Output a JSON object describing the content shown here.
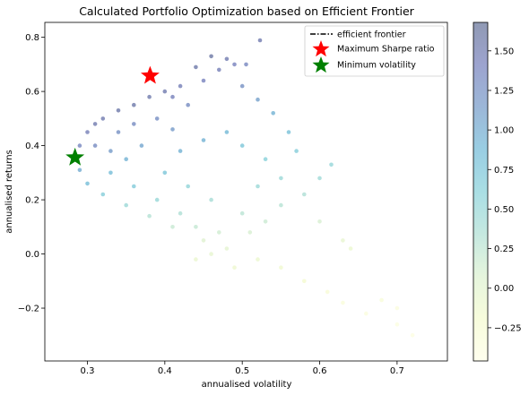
{
  "chart_data": {
    "type": "scatter",
    "title": "Calculated Portfolio Optimization based on Efficient Frontier",
    "xlabel": "annualised volatility",
    "ylabel": "annualised returns",
    "xlim": [
      0.245,
      0.765
    ],
    "ylim": [
      -0.395,
      0.855
    ],
    "xticks": [
      0.3,
      0.4,
      0.5,
      0.6,
      0.7
    ],
    "xtick_labels": [
      "0.3",
      "0.4",
      "0.5",
      "0.6",
      "0.7"
    ],
    "yticks": [
      -0.2,
      0.0,
      0.2,
      0.4,
      0.6,
      0.8
    ],
    "ytick_labels": [
      "−0.2",
      "0.0",
      "0.2",
      "0.4",
      "0.6",
      "0.8"
    ],
    "grid": false,
    "colorbar": {
      "colormap": "YlGnBu",
      "range": [
        -0.46,
        1.68
      ],
      "ticks": [
        -0.25,
        0.0,
        0.25,
        0.5,
        0.75,
        1.0,
        1.25,
        1.5
      ],
      "tick_labels": [
        "−0.25",
        "0.00",
        "0.25",
        "0.50",
        "0.75",
        "1.00",
        "1.25",
        "1.50"
      ]
    },
    "scatter_cloud": {
      "description_of_shape": "random portfolios colored by Sharpe ratio",
      "points": [
        [
          0.282,
          0.358,
          1.2
        ],
        [
          0.29,
          0.4,
          1.35
        ],
        [
          0.29,
          0.31,
          1.0
        ],
        [
          0.3,
          0.45,
          1.45
        ],
        [
          0.31,
          0.48,
          1.5
        ],
        [
          0.32,
          0.5,
          1.5
        ],
        [
          0.34,
          0.53,
          1.55
        ],
        [
          0.36,
          0.55,
          1.55
        ],
        [
          0.38,
          0.58,
          1.52
        ],
        [
          0.4,
          0.6,
          1.5
        ],
        [
          0.42,
          0.62,
          1.45
        ],
        [
          0.45,
          0.64,
          1.4
        ],
        [
          0.47,
          0.68,
          1.45
        ],
        [
          0.49,
          0.7,
          1.4
        ],
        [
          0.523,
          0.789,
          1.5
        ],
        [
          0.505,
          0.7,
          1.35
        ],
        [
          0.48,
          0.72,
          1.5
        ],
        [
          0.46,
          0.73,
          1.58
        ],
        [
          0.44,
          0.69,
          1.55
        ],
        [
          0.3,
          0.26,
          0.85
        ],
        [
          0.32,
          0.22,
          0.65
        ],
        [
          0.35,
          0.18,
          0.48
        ],
        [
          0.38,
          0.14,
          0.32
        ],
        [
          0.41,
          0.1,
          0.2
        ],
        [
          0.45,
          0.05,
          0.05
        ],
        [
          0.48,
          0.02,
          -0.02
        ],
        [
          0.52,
          -0.02,
          -0.1
        ],
        [
          0.55,
          -0.05,
          -0.15
        ],
        [
          0.58,
          -0.1,
          -0.2
        ],
        [
          0.61,
          -0.14,
          -0.28
        ],
        [
          0.63,
          -0.18,
          -0.32
        ],
        [
          0.66,
          -0.22,
          -0.35
        ],
        [
          0.7,
          -0.26,
          -0.38
        ],
        [
          0.72,
          -0.3,
          -0.4
        ],
        [
          0.63,
          0.05,
          -0.05
        ],
        [
          0.6,
          0.12,
          0.1
        ],
        [
          0.58,
          0.22,
          0.35
        ],
        [
          0.55,
          0.28,
          0.48
        ],
        [
          0.53,
          0.35,
          0.62
        ],
        [
          0.5,
          0.4,
          0.75
        ],
        [
          0.48,
          0.45,
          0.9
        ],
        [
          0.45,
          0.42,
          0.95
        ],
        [
          0.42,
          0.38,
          0.95
        ],
        [
          0.4,
          0.3,
          0.75
        ],
        [
          0.43,
          0.25,
          0.55
        ],
        [
          0.46,
          0.2,
          0.4
        ],
        [
          0.5,
          0.15,
          0.28
        ],
        [
          0.52,
          0.25,
          0.48
        ],
        [
          0.37,
          0.4,
          1.05
        ],
        [
          0.35,
          0.35,
          0.95
        ],
        [
          0.33,
          0.3,
          0.85
        ],
        [
          0.36,
          0.25,
          0.68
        ],
        [
          0.39,
          0.2,
          0.5
        ],
        [
          0.42,
          0.15,
          0.35
        ],
        [
          0.44,
          0.1,
          0.22
        ],
        [
          0.47,
          0.08,
          0.15
        ],
        [
          0.34,
          0.45,
          1.25
        ],
        [
          0.36,
          0.48,
          1.3
        ],
        [
          0.39,
          0.5,
          1.28
        ],
        [
          0.41,
          0.46,
          1.15
        ],
        [
          0.43,
          0.55,
          1.3
        ],
        [
          0.41,
          0.58,
          1.42
        ],
        [
          0.31,
          0.4,
          1.3
        ],
        [
          0.33,
          0.38,
          1.15
        ],
        [
          0.56,
          0.45,
          0.8
        ],
        [
          0.54,
          0.52,
          0.95
        ],
        [
          0.52,
          0.57,
          1.1
        ],
        [
          0.5,
          0.62,
          1.25
        ],
        [
          0.57,
          0.38,
          0.65
        ],
        [
          0.6,
          0.28,
          0.45
        ],
        [
          0.615,
          0.33,
          0.52
        ],
        [
          0.64,
          0.02,
          -0.1
        ],
        [
          0.7,
          -0.2,
          -0.35
        ],
        [
          0.68,
          -0.17,
          -0.3
        ],
        [
          0.49,
          -0.05,
          -0.12
        ],
        [
          0.44,
          -0.02,
          -0.08
        ],
        [
          0.46,
          0.0,
          -0.04
        ],
        [
          0.51,
          0.08,
          0.1
        ],
        [
          0.53,
          0.12,
          0.18
        ],
        [
          0.55,
          0.18,
          0.3
        ]
      ]
    },
    "legend": {
      "placement": "top-right",
      "entries": [
        {
          "label": "efficient frontier",
          "marker": "dash-dot line",
          "color": "#000000"
        },
        {
          "label": "Maximum Sharpe ratio",
          "marker": "star",
          "color": "#ff0000"
        },
        {
          "label": "Minimum volatility",
          "marker": "star",
          "color": "#008000"
        }
      ]
    },
    "highlights": [
      {
        "label": "Maximum Sharpe ratio",
        "x": 0.381,
        "y": 0.658,
        "color": "#ff0000"
      },
      {
        "label": "Minimum volatility",
        "x": 0.284,
        "y": 0.356,
        "color": "#008000"
      }
    ]
  }
}
